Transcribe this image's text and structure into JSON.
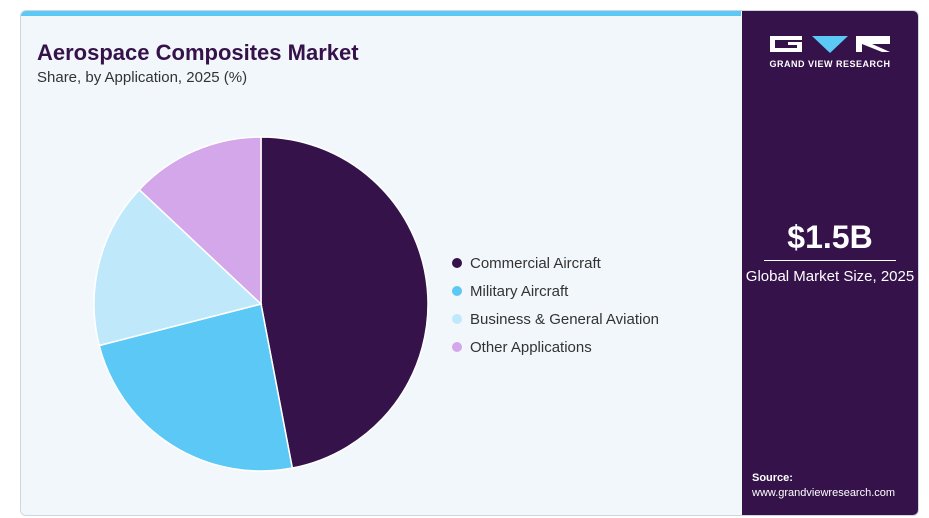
{
  "header": {
    "title": "Aerospace Composites Market",
    "subtitle": "Share, by Application, 2025 (%)"
  },
  "chart_data": {
    "type": "pie",
    "categories": [
      "Commercial Aircraft",
      "Military Aircraft",
      "Business & General Aviation",
      "Other Applications"
    ],
    "values": [
      47,
      24,
      16,
      13
    ],
    "colors": [
      "#35134a",
      "#5bc8f5",
      "#bfe9fa",
      "#d4a6ea"
    ],
    "legend_position": "right",
    "start": "top, clockwise"
  },
  "sidebar": {
    "brand": "GRAND VIEW RESEARCH",
    "market_value": "$1.5B",
    "market_label": "Global Market Size, 2025",
    "source_label": "Source:",
    "source_url": "www.grandviewresearch.com",
    "background": "#35134a"
  }
}
